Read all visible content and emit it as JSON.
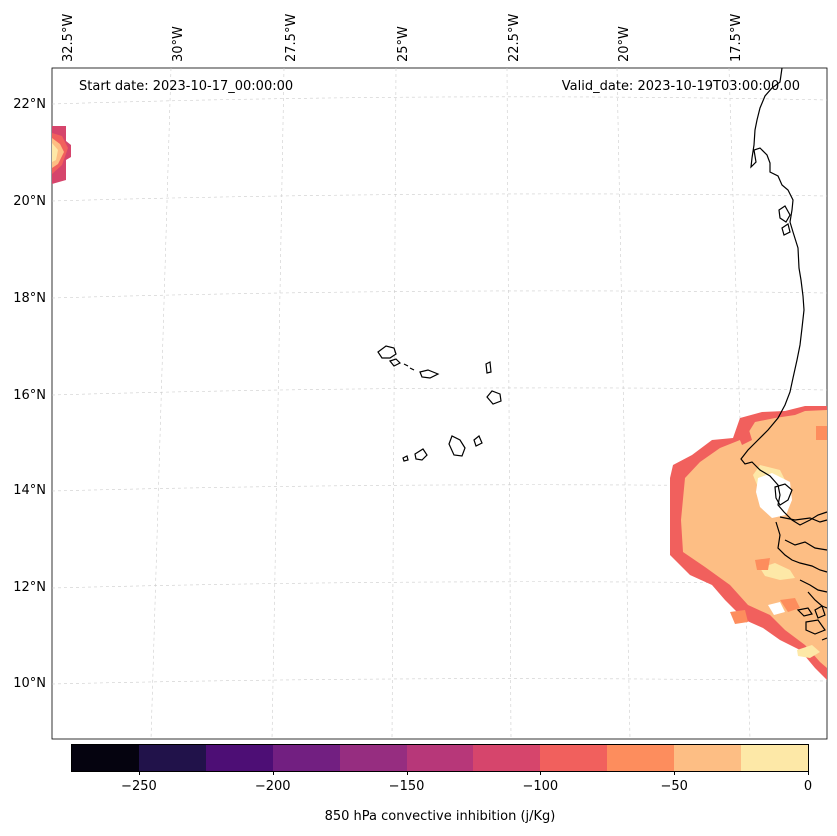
{
  "map": {
    "start_date": "Start date: 2023-10-17_00:00:00",
    "valid_date": "Valid_date: 2023-10-19T03:00:00.00",
    "lon_labels": [
      "32.5°W",
      "30°W",
      "27.5°W",
      "25°W",
      "22.5°W",
      "20°W",
      "17.5°W"
    ],
    "lat_labels": [
      "22°N",
      "20°N",
      "18°N",
      "16°N",
      "14°N",
      "12°N",
      "10°N"
    ],
    "gridlines": true
  },
  "colorbar": {
    "label": "850 hPa convective inhibition (j/Kg)",
    "ticks": [
      "−250",
      "−200",
      "−150",
      "−100",
      "−50",
      "0"
    ],
    "range": [
      -275,
      0
    ],
    "step": 25,
    "colors": [
      "#05030f",
      "#21124a",
      "#4d0e75",
      "#721f81",
      "#962d80",
      "#b73779",
      "#d6456c",
      "#f1605d",
      "#fd8d5d",
      "#fdbe84",
      "#fde8a7"
    ]
  }
}
